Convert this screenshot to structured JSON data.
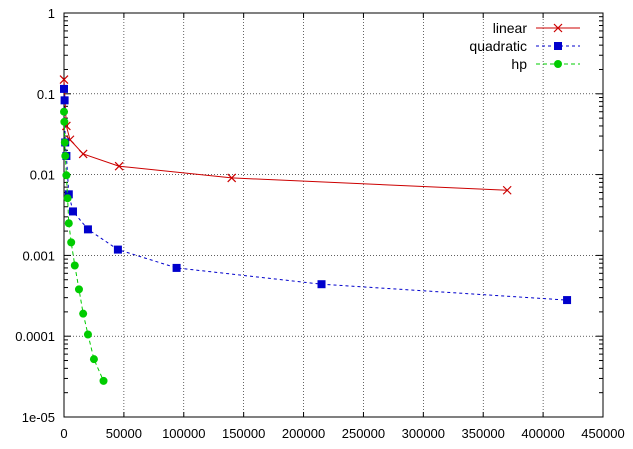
{
  "chart_data": {
    "type": "line",
    "title": "",
    "xlabel": "",
    "ylabel": "",
    "xlim": [
      0,
      450000
    ],
    "ylim": [
      1e-05,
      1
    ],
    "yscale": "log",
    "grid": true,
    "legend_position": "top-right",
    "xticks": [
      "0",
      "50000",
      "100000",
      "150000",
      "200000",
      "250000",
      "300000",
      "350000",
      "400000",
      "450000"
    ],
    "yticks": [
      "1e-05",
      "0.0001",
      "0.001",
      "0.01",
      "0.1",
      "1"
    ],
    "series": [
      {
        "name": "linear",
        "color": "#cc0000",
        "marker": "x",
        "dash": "solid",
        "x": [
          0,
          2000,
          5000,
          16000,
          46000,
          140000,
          370000
        ],
        "y": [
          0.15,
          0.04,
          0.027,
          0.018,
          0.0127,
          0.0091,
          0.0064
        ]
      },
      {
        "name": "quadratic",
        "color": "#0000cc",
        "marker": "square",
        "dash": "dashed",
        "x": [
          0,
          500,
          1000,
          2000,
          4000,
          7500,
          20000,
          45000,
          94000,
          215000,
          420000
        ],
        "y": [
          0.115,
          0.083,
          0.025,
          0.017,
          0.0057,
          0.0035,
          0.0021,
          0.00118,
          0.0007,
          0.00044,
          0.00028
        ],
        "stroke_dash": "3,3"
      },
      {
        "name": "hp",
        "color": "#00cc00",
        "marker": "circle",
        "dash": "dashed",
        "x": [
          0,
          300,
          700,
          1100,
          2000,
          3000,
          4000,
          6000,
          9000,
          12500,
          16000,
          20000,
          25000,
          33000
        ],
        "y": [
          0.06,
          0.045,
          0.025,
          0.017,
          0.0098,
          0.0051,
          0.0025,
          0.00145,
          0.00075,
          0.00038,
          0.00019,
          0.000105,
          5.2e-05,
          2.8e-05
        ]
      }
    ]
  }
}
